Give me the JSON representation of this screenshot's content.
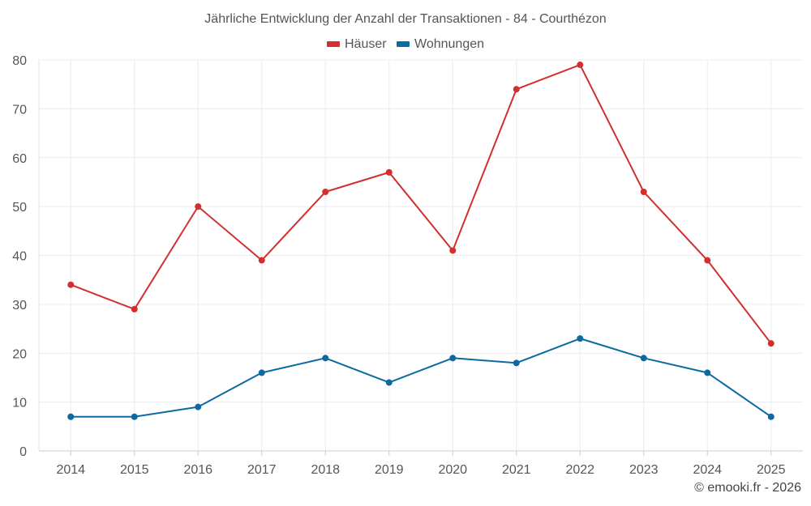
{
  "chart_data": {
    "type": "line",
    "title": "Jährliche Entwicklung der Anzahl der Transaktionen - 84 - Courthézon",
    "xlabel": "",
    "ylabel": "",
    "x": [
      "2014",
      "2015",
      "2016",
      "2017",
      "2018",
      "2019",
      "2020",
      "2021",
      "2022",
      "2023",
      "2024",
      "2025"
    ],
    "ylim": [
      0,
      80
    ],
    "yticks": [
      0,
      10,
      20,
      30,
      40,
      50,
      60,
      70,
      80
    ],
    "grid": true,
    "legend_position": "top-center",
    "series": [
      {
        "name": "Häuser",
        "color": "#d32f2f",
        "values": [
          34,
          29,
          50,
          39,
          53,
          57,
          41,
          74,
          79,
          53,
          39,
          22
        ]
      },
      {
        "name": "Wohnungen",
        "color": "#0a6aa1",
        "values": [
          7,
          7,
          9,
          16,
          19,
          14,
          19,
          18,
          23,
          19,
          16,
          7
        ]
      }
    ]
  },
  "credit": "© emooki.fr - 2026"
}
